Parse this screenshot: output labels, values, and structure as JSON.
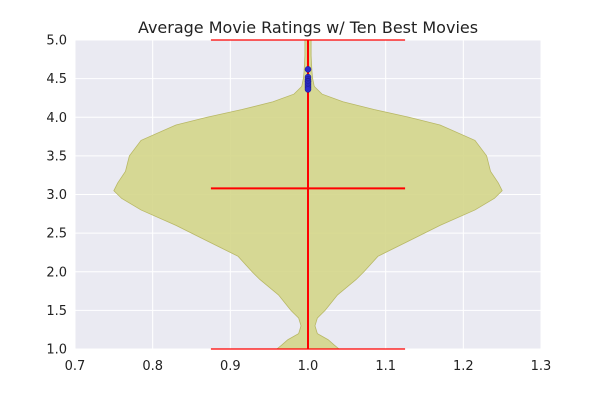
{
  "chart_data": {
    "type": "violin",
    "title": "Average Movie Ratings w/ Ten Best Movies",
    "xlabel": "",
    "ylabel": "",
    "xlim": [
      0.7,
      1.3
    ],
    "ylim": [
      1.0,
      5.0
    ],
    "x_ticks": [
      "0.7",
      "0.8",
      "0.9",
      "1.0",
      "1.1",
      "1.2",
      "1.3"
    ],
    "y_ticks": [
      "1.0",
      "1.5",
      "2.0",
      "2.5",
      "3.0",
      "3.5",
      "4.0",
      "4.5",
      "5.0"
    ],
    "grid": true,
    "background_color": "#eaeaf2",
    "grid_color": "#ffffff",
    "violin": {
      "position": 1.0,
      "fill_color": "#d4d68a",
      "edge_color": "#b8b866",
      "line_color": "#ff0000",
      "min": 1.0,
      "max": 5.0,
      "mean": 3.08,
      "cap_halfwidth": 0.125,
      "mean_halfwidth": 0.125,
      "density_profile": [
        {
          "y": 1.0,
          "halfwidth": 0.04
        },
        {
          "y": 1.05,
          "halfwidth": 0.034
        },
        {
          "y": 1.12,
          "halfwidth": 0.026
        },
        {
          "y": 1.2,
          "halfwidth": 0.012
        },
        {
          "y": 1.3,
          "halfwidth": 0.009
        },
        {
          "y": 1.4,
          "halfwidth": 0.012
        },
        {
          "y": 1.5,
          "halfwidth": 0.022
        },
        {
          "y": 1.6,
          "halfwidth": 0.03
        },
        {
          "y": 1.7,
          "halfwidth": 0.038
        },
        {
          "y": 1.8,
          "halfwidth": 0.05
        },
        {
          "y": 1.9,
          "halfwidth": 0.062
        },
        {
          "y": 2.0,
          "halfwidth": 0.072
        },
        {
          "y": 2.2,
          "halfwidth": 0.09
        },
        {
          "y": 2.4,
          "halfwidth": 0.13
        },
        {
          "y": 2.6,
          "halfwidth": 0.17
        },
        {
          "y": 2.8,
          "halfwidth": 0.215
        },
        {
          "y": 2.95,
          "halfwidth": 0.24
        },
        {
          "y": 3.05,
          "halfwidth": 0.25
        },
        {
          "y": 3.15,
          "halfwidth": 0.245
        },
        {
          "y": 3.3,
          "halfwidth": 0.235
        },
        {
          "y": 3.5,
          "halfwidth": 0.23
        },
        {
          "y": 3.7,
          "halfwidth": 0.215
        },
        {
          "y": 3.9,
          "halfwidth": 0.17
        },
        {
          "y": 4.0,
          "halfwidth": 0.13
        },
        {
          "y": 4.1,
          "halfwidth": 0.085
        },
        {
          "y": 4.2,
          "halfwidth": 0.045
        },
        {
          "y": 4.3,
          "halfwidth": 0.018
        },
        {
          "y": 4.4,
          "halfwidth": 0.008
        },
        {
          "y": 4.5,
          "halfwidth": 0.006
        },
        {
          "y": 4.6,
          "halfwidth": 0.005
        },
        {
          "y": 4.8,
          "halfwidth": 0.004
        },
        {
          "y": 5.0,
          "halfwidth": 0.004
        }
      ]
    },
    "highlight_points": {
      "name": "Ten Best Movies",
      "color": "#2a2acc",
      "x": 1.0,
      "values": [
        4.62,
        4.52,
        4.49,
        4.47,
        4.46,
        4.44,
        4.42,
        4.4,
        4.38,
        4.36
      ]
    }
  }
}
